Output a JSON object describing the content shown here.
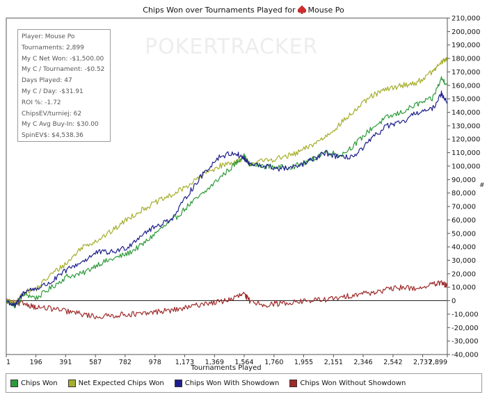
{
  "title": {
    "prefix": "Chips Won over Tournaments Played for",
    "player": "Mouse Po"
  },
  "watermark": "POKERTRACKER",
  "stats_box": [
    "Player: Mouse Po",
    "Tournaments: 2,899",
    "My C Net Won: -$1,500.00",
    "My C / Tournament: -$0.52",
    "Days Played: 47",
    "My C / Day: -$31.91",
    "ROI %: -1.72",
    "ChipsEV/turniej: 62",
    "My C Avg Buy-In: $30.00",
    "SpinEV$: $4,538.36"
  ],
  "y_axis_symbol": "#",
  "legend": {
    "items": [
      {
        "label": "Chips Won",
        "color": "#2e9a3a"
      },
      {
        "label": "Net Expected Chips Won",
        "color": "#a5ae2c"
      },
      {
        "label": "Chips Won With Showdown",
        "color": "#1e1e8c"
      },
      {
        "label": "Chips Won Without Showdown",
        "color": "#9e2a2a"
      }
    ]
  },
  "chart_data": {
    "type": "line",
    "title": "Chips Won over Tournaments Played for Mouse Po",
    "xlabel": "Tournaments Played",
    "ylabel": "#",
    "xlim": [
      1,
      2899
    ],
    "ylim": [
      -40000,
      210000
    ],
    "x_ticks": [
      "1",
      "196",
      "391",
      "587",
      "782",
      "978",
      "1,173",
      "1,369",
      "1,564",
      "1,760",
      "1,955",
      "2,151",
      "2,346",
      "2,542",
      "2,737",
      "2,899"
    ],
    "x_tick_values": [
      1,
      196,
      391,
      587,
      782,
      978,
      1173,
      1369,
      1564,
      1760,
      1955,
      2151,
      2346,
      2542,
      2737,
      2899
    ],
    "y_ticks": [
      "-40,000",
      "-30,000",
      "-20,000",
      "-10,000",
      "0",
      "10,000",
      "20,000",
      "30,000",
      "40,000",
      "50,000",
      "60,000",
      "70,000",
      "80,000",
      "90,000",
      "100,000",
      "110,000",
      "120,000",
      "130,000",
      "140,000",
      "150,000",
      "160,000",
      "170,000",
      "180,000",
      "190,000",
      "200,000",
      "210,000"
    ],
    "y_tick_values": [
      -40000,
      -30000,
      -20000,
      -10000,
      0,
      10000,
      20000,
      30000,
      40000,
      50000,
      60000,
      70000,
      80000,
      90000,
      100000,
      110000,
      120000,
      130000,
      140000,
      150000,
      160000,
      170000,
      180000,
      190000,
      200000,
      210000
    ],
    "grid": false,
    "legend_position": "bottom",
    "series": [
      {
        "name": "Chips Won",
        "color": "#2e9a3a",
        "x": [
          1,
          60,
          120,
          200,
          300,
          400,
          500,
          600,
          700,
          800,
          900,
          1000,
          1100,
          1200,
          1300,
          1400,
          1500,
          1560,
          1600,
          1700,
          1800,
          1900,
          2000,
          2100,
          2200,
          2300,
          2400,
          2500,
          2600,
          2700,
          2800,
          2860,
          2899
        ],
        "y": [
          0,
          -4000,
          5000,
          2000,
          10000,
          18000,
          20000,
          27000,
          31000,
          35000,
          42000,
          52000,
          60000,
          71000,
          80000,
          91000,
          101000,
          108000,
          101000,
          100000,
          99000,
          100000,
          104000,
          111000,
          108000,
          117000,
          128000,
          136000,
          140000,
          146000,
          150000,
          165000,
          161000
        ]
      },
      {
        "name": "Net Expected Chips Won",
        "color": "#a5ae2c",
        "x": [
          1,
          60,
          120,
          200,
          300,
          400,
          500,
          600,
          700,
          800,
          900,
          1000,
          1100,
          1200,
          1300,
          1400,
          1500,
          1560,
          1600,
          1700,
          1800,
          1900,
          2000,
          2100,
          2200,
          2300,
          2400,
          2500,
          2600,
          2700,
          2800,
          2860,
          2899
        ],
        "y": [
          0,
          -2000,
          6000,
          9000,
          20000,
          28000,
          40000,
          45000,
          52000,
          61000,
          68000,
          74000,
          79000,
          86000,
          94000,
          100000,
          103000,
          106000,
          102000,
          104000,
          106000,
          109000,
          115000,
          122000,
          132000,
          142000,
          152000,
          157000,
          160000,
          162000,
          170000,
          177000,
          180000
        ]
      },
      {
        "name": "Chips Won With Showdown",
        "color": "#1e1e8c",
        "x": [
          1,
          60,
          120,
          200,
          300,
          400,
          500,
          600,
          700,
          800,
          900,
          1000,
          1100,
          1200,
          1300,
          1400,
          1500,
          1560,
          1600,
          1700,
          1800,
          1900,
          2000,
          2100,
          2200,
          2300,
          2400,
          2500,
          2600,
          2700,
          2800,
          2860,
          2899
        ],
        "y": [
          0,
          -4000,
          7000,
          9000,
          14000,
          23000,
          29000,
          36000,
          36000,
          40000,
          50000,
          56000,
          62000,
          80000,
          95000,
          107000,
          110000,
          106000,
          101000,
          100000,
          98000,
          99000,
          104000,
          110000,
          106000,
          108000,
          120000,
          130000,
          132000,
          140000,
          142000,
          154000,
          148000
        ]
      },
      {
        "name": "Chips Won Without Showdown",
        "color": "#9e2a2a",
        "x": [
          1,
          60,
          120,
          200,
          300,
          400,
          500,
          600,
          700,
          800,
          900,
          1000,
          1100,
          1200,
          1300,
          1400,
          1500,
          1560,
          1600,
          1700,
          1800,
          1900,
          2000,
          2100,
          2200,
          2300,
          2400,
          2500,
          2600,
          2700,
          2800,
          2860,
          2899
        ],
        "y": [
          0,
          -2000,
          -2000,
          -5000,
          -6000,
          -8000,
          -10000,
          -12000,
          -11000,
          -10000,
          -10000,
          -8000,
          -7000,
          -5000,
          -2000,
          -1000,
          2000,
          5000,
          0,
          -3000,
          -2000,
          -1000,
          0,
          1000,
          2000,
          5000,
          6000,
          8000,
          10000,
          9000,
          12000,
          13000,
          11000
        ]
      }
    ]
  }
}
